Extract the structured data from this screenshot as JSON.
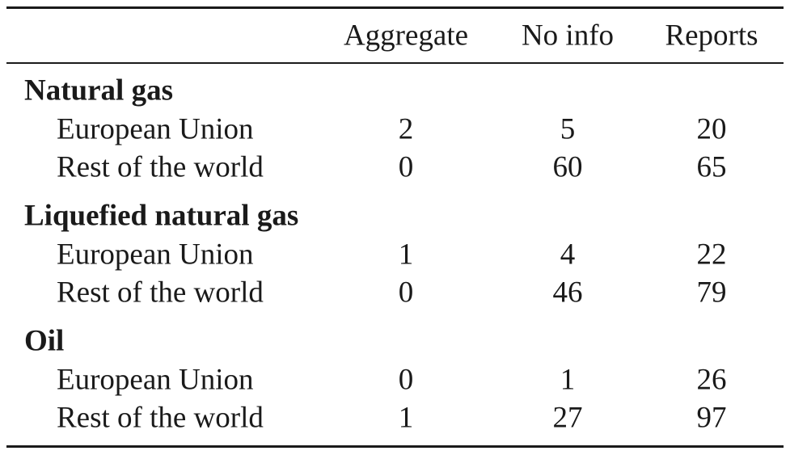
{
  "table": {
    "columns": [
      "Aggregate",
      "No info",
      "Reports"
    ],
    "groups": [
      {
        "title": "Natural gas",
        "rows": [
          {
            "label": "European Union",
            "values": [
              2,
              5,
              20
            ]
          },
          {
            "label": "Rest of the world",
            "values": [
              0,
              60,
              65
            ]
          }
        ]
      },
      {
        "title": "Liquefied natural gas",
        "rows": [
          {
            "label": "European Union",
            "values": [
              1,
              4,
              22
            ]
          },
          {
            "label": "Rest of the world",
            "values": [
              0,
              46,
              79
            ]
          }
        ]
      },
      {
        "title": "Oil",
        "rows": [
          {
            "label": "European Union",
            "values": [
              0,
              1,
              26
            ]
          },
          {
            "label": "Rest of the world",
            "values": [
              1,
              27,
              97
            ]
          }
        ]
      }
    ]
  }
}
